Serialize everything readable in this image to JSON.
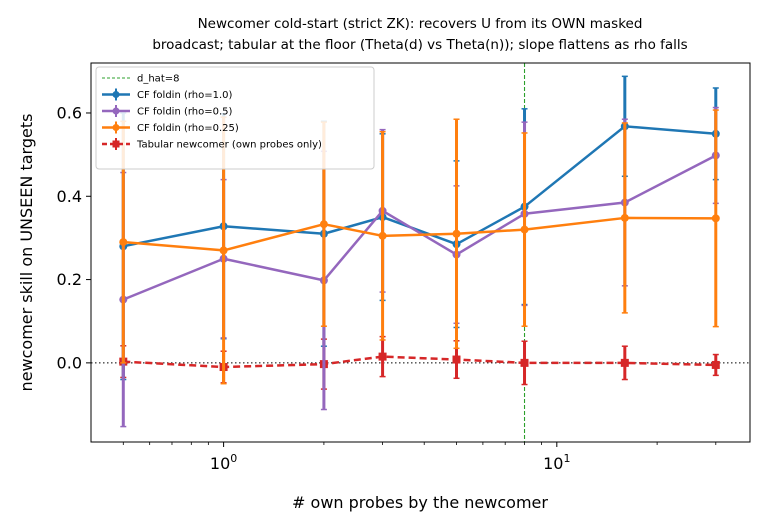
{
  "chart_data": {
    "type": "line",
    "title_lines": [
      "Newcomer cold-start (strict ZK): recovers U from its OWN masked",
      "broadcast; tabular at the floor (Theta(d) vs Theta(n)); slope flattens as rho falls"
    ],
    "xlabel": "# own probes by the newcomer",
    "ylabel": "newcomer skill on UNSEEN targets",
    "xscale": "log",
    "xlim": [
      0.4,
      38
    ],
    "ylim": [
      -0.19,
      0.72
    ],
    "x_ticks": [
      {
        "value": 1,
        "base": "10",
        "exp": "0"
      },
      {
        "value": 10,
        "base": "10",
        "exp": "1"
      }
    ],
    "y_ticks": [
      {
        "value": 0.0,
        "label": "0.0"
      },
      {
        "value": 0.2,
        "label": "0.2"
      },
      {
        "value": 0.4,
        "label": "0.4"
      },
      {
        "value": 0.6,
        "label": "0.6"
      }
    ],
    "x": [
      0.5,
      1,
      2,
      3,
      5,
      8,
      16,
      30
    ],
    "reference_lines": [
      {
        "kind": "vertical",
        "x": 8,
        "label": "d_hat=8",
        "color": "#2ca02c",
        "style": "dashed"
      },
      {
        "kind": "horizontal",
        "y": 0,
        "color": "#000000",
        "style": "dotted"
      }
    ],
    "legend_position": "upper-left",
    "series": [
      {
        "name": "CF foldin (rho=1.0)",
        "color": "#1f77b4",
        "marker": "circle",
        "line_style": "solid",
        "values": [
          0.28,
          0.328,
          0.31,
          0.35,
          0.285,
          0.375,
          0.568,
          0.55
        ],
        "error": [
          0.32,
          0.27,
          0.27,
          0.2,
          0.2,
          0.235,
          0.12,
          0.11
        ]
      },
      {
        "name": "CF foldin (rho=0.5)",
        "color": "#9467bd",
        "marker": "circle",
        "line_style": "solid",
        "values": [
          0.152,
          0.25,
          0.198,
          0.365,
          0.26,
          0.358,
          0.385,
          0.498
        ],
        "error": [
          0.305,
          0.19,
          0.31,
          0.195,
          0.165,
          0.22,
          0.2,
          0.115
        ]
      },
      {
        "name": "CF foldin (rho=0.25)",
        "color": "#ff7f0e",
        "marker": "circle",
        "line_style": "solid",
        "values": [
          0.29,
          0.27,
          0.333,
          0.305,
          0.31,
          0.32,
          0.348,
          0.347
        ],
        "error": [
          0.29,
          0.32,
          0.245,
          0.25,
          0.275,
          0.232,
          0.228,
          0.26
        ]
      },
      {
        "name": "Tabular newcomer (own probes only)",
        "color": "#d62728",
        "marker": "square",
        "line_style": "dashed",
        "values": [
          0.003,
          -0.01,
          -0.003,
          0.015,
          0.008,
          0.0,
          0.0,
          -0.005
        ],
        "error": [
          0.038,
          0.038,
          0.06,
          0.048,
          0.045,
          0.052,
          0.04,
          0.025
        ]
      }
    ]
  }
}
